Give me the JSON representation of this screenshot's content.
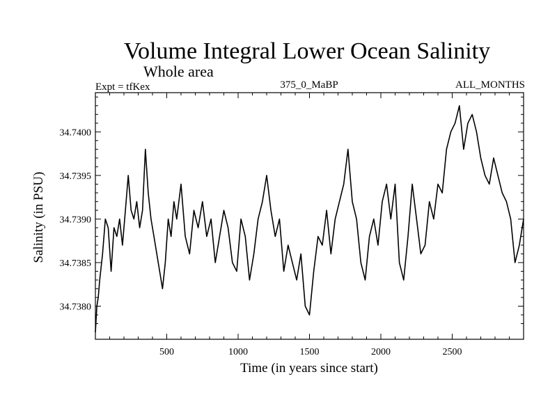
{
  "chart_data": {
    "type": "line",
    "title": "Volume Integral Lower Ocean Salinity",
    "subtitle": "Whole area",
    "header_left": "Expt = tfKex",
    "header_center": "375_0_MaBP",
    "header_right": "ALL_MONTHS",
    "xlabel": "Time (in years since start)",
    "ylabel": "Salinity (in PSU)",
    "xlim": [
      0,
      3000
    ],
    "ylim": [
      34.73762,
      34.74045
    ],
    "xticks": [
      500,
      1000,
      1500,
      2000,
      2500
    ],
    "yticks": [
      34.738,
      34.7385,
      34.739,
      34.7395,
      34.74
    ],
    "ytick_labels": [
      "34.7380",
      "34.7385",
      "34.7390",
      "34.7395",
      "34.7400"
    ],
    "grid": false,
    "series": [
      {
        "color": "#000000",
        "x": [
          0,
          10,
          20,
          30,
          50,
          70,
          90,
          110,
          130,
          150,
          170,
          190,
          210,
          230,
          250,
          270,
          290,
          310,
          330,
          350,
          370,
          390,
          410,
          430,
          450,
          470,
          490,
          510,
          530,
          550,
          570,
          600,
          630,
          660,
          690,
          720,
          750,
          780,
          810,
          840,
          870,
          900,
          930,
          960,
          990,
          1020,
          1050,
          1080,
          1110,
          1140,
          1170,
          1200,
          1230,
          1260,
          1290,
          1320,
          1350,
          1380,
          1410,
          1440,
          1470,
          1500,
          1530,
          1560,
          1590,
          1620,
          1650,
          1680,
          1710,
          1740,
          1770,
          1800,
          1830,
          1860,
          1890,
          1920,
          1950,
          1980,
          2010,
          2040,
          2070,
          2100,
          2130,
          2160,
          2190,
          2220,
          2250,
          2280,
          2310,
          2340,
          2370,
          2400,
          2430,
          2460,
          2490,
          2520,
          2550,
          2580,
          2610,
          2640,
          2670,
          2700,
          2730,
          2760,
          2790,
          2820,
          2850,
          2880,
          2910,
          2940,
          2970,
          3000
        ],
        "values": [
          34.7377,
          34.738,
          34.7381,
          34.7383,
          34.7386,
          34.739,
          34.7389,
          34.7384,
          34.7389,
          34.7388,
          34.739,
          34.7387,
          34.7391,
          34.7395,
          34.7391,
          34.739,
          34.7392,
          34.7389,
          34.7391,
          34.7398,
          34.7393,
          34.739,
          34.7388,
          34.7386,
          34.7384,
          34.7382,
          34.7385,
          34.739,
          34.7388,
          34.7392,
          34.739,
          34.7394,
          34.7388,
          34.7386,
          34.7391,
          34.7389,
          34.7392,
          34.7388,
          34.739,
          34.7385,
          34.7388,
          34.7391,
          34.7389,
          34.7385,
          34.7384,
          34.739,
          34.7388,
          34.7383,
          34.7386,
          34.739,
          34.7392,
          34.7395,
          34.7391,
          34.7388,
          34.739,
          34.7384,
          34.7387,
          34.7385,
          34.7383,
          34.7386,
          34.738,
          34.7379,
          34.7384,
          34.7388,
          34.7387,
          34.7391,
          34.7386,
          34.739,
          34.7392,
          34.7394,
          34.7398,
          34.7392,
          34.739,
          34.7385,
          34.7383,
          34.7388,
          34.739,
          34.7387,
          34.7392,
          34.7394,
          34.739,
          34.7394,
          34.7385,
          34.7383,
          34.7388,
          34.7394,
          34.739,
          34.7386,
          34.7387,
          34.7392,
          34.739,
          34.7394,
          34.7393,
          34.7398,
          34.74,
          34.7401,
          34.7403,
          34.7398,
          34.7401,
          34.7402,
          34.74,
          34.7397,
          34.7395,
          34.7394,
          34.7397,
          34.7395,
          34.7393,
          34.7392,
          34.739,
          34.7385,
          34.7387,
          34.739
        ]
      }
    ]
  }
}
